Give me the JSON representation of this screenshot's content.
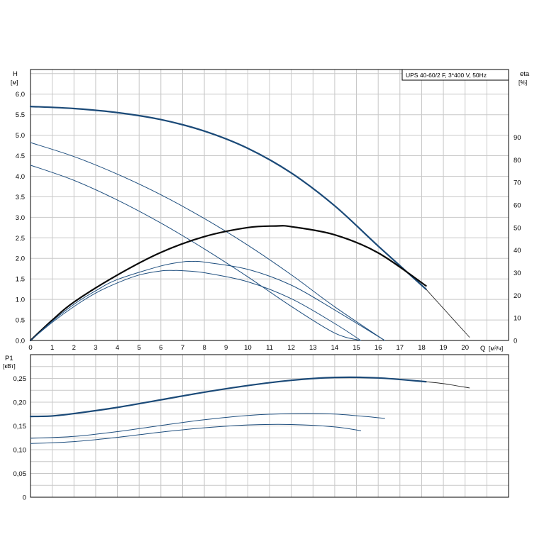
{
  "chart_data": [
    {
      "type": "line",
      "title": "UPS 40-60/2 F, 3*400 V, 50Hz",
      "xlabel": "Q",
      "xunit": "[м³/ч]",
      "ylabel": "H",
      "yunit": "[м]",
      "y2label": "eta",
      "y2unit": "[%]",
      "xlim": [
        0,
        22
      ],
      "ylim": [
        0,
        6.6
      ],
      "y2lim": [
        0,
        120
      ],
      "grid": true,
      "x_ticks": [
        "0",
        "1",
        "2",
        "3",
        "4",
        "5",
        "6",
        "7",
        "8",
        "9",
        "10",
        "11",
        "12",
        "13",
        "14",
        "15",
        "16",
        "17",
        "18",
        "19",
        "20"
      ],
      "y_ticks": [
        "0.0",
        "0.5",
        "1.0",
        "1.5",
        "2.0",
        "2.5",
        "3.0",
        "3.5",
        "4.0",
        "4.5",
        "5.0",
        "5.5",
        "6.0"
      ],
      "y2_ticks": [
        "0",
        "10",
        "20",
        "30",
        "40",
        "50",
        "60",
        "70",
        "80",
        "90"
      ],
      "series": [
        {
          "axis": "H",
          "style": "bold",
          "x": [
            0,
            2,
            4,
            6,
            8,
            10,
            12,
            14,
            16,
            18.2
          ],
          "y": [
            5.7,
            5.65,
            5.55,
            5.38,
            5.1,
            4.68,
            4.08,
            3.28,
            2.3,
            1.25
          ]
        },
        {
          "axis": "H",
          "style": "bold-ext",
          "x": [
            18.2,
            19,
            20.2
          ],
          "y": [
            1.25,
            0.78,
            0.08
          ]
        },
        {
          "axis": "H",
          "style": "thin",
          "x": [
            0,
            2,
            4,
            6,
            8,
            10,
            12,
            14,
            16.3
          ],
          "y": [
            4.82,
            4.48,
            4.05,
            3.55,
            2.97,
            2.32,
            1.6,
            0.82,
            0.0
          ]
        },
        {
          "axis": "H",
          "style": "thin",
          "x": [
            0,
            2,
            4,
            6,
            8,
            10,
            12,
            14,
            15.2
          ],
          "y": [
            4.27,
            3.9,
            3.42,
            2.86,
            2.23,
            1.55,
            0.83,
            0.18,
            0.0
          ]
        },
        {
          "axis": "eta",
          "style": "bold",
          "x": [
            0,
            1,
            2,
            4,
            6,
            8,
            10,
            11.3,
            12,
            14,
            16,
            18.2
          ],
          "y": [
            0,
            9,
            17,
            29,
            39,
            46,
            50,
            50.7,
            50.4,
            46.8,
            38.8,
            24.2
          ]
        },
        {
          "axis": "eta",
          "style": "thin",
          "x": [
            0,
            1,
            2,
            3,
            4,
            6,
            7,
            7.4,
            8,
            10,
            12,
            14,
            16.3
          ],
          "y": [
            0,
            8.5,
            16,
            22,
            27,
            33,
            34.8,
            35,
            34.7,
            31.5,
            24.5,
            13.5,
            0
          ]
        },
        {
          "axis": "eta",
          "style": "thin",
          "x": [
            0,
            1,
            2,
            3,
            4,
            5,
            6,
            6.6,
            7,
            8,
            10,
            12,
            14,
            15.2
          ],
          "y": [
            0,
            8,
            15,
            21,
            25.5,
            29,
            30.8,
            31,
            30.9,
            30,
            26,
            18.5,
            7.5,
            0
          ]
        }
      ]
    },
    {
      "type": "line",
      "ylabel": "P1",
      "yunit": "[кВт]",
      "xlim": [
        0,
        22
      ],
      "ylim": [
        0,
        0.3
      ],
      "grid": true,
      "y_ticks": [
        "0",
        "0,05",
        "0,10",
        "0,15",
        "0,20",
        "0,25"
      ],
      "series": [
        {
          "style": "bold",
          "x": [
            0,
            1,
            2,
            4,
            6,
            8,
            10,
            12,
            14,
            16,
            18.2
          ],
          "y": [
            0.17,
            0.171,
            0.176,
            0.189,
            0.205,
            0.221,
            0.235,
            0.246,
            0.252,
            0.251,
            0.243
          ]
        },
        {
          "style": "bold-ext",
          "x": [
            18.2,
            19,
            20.2
          ],
          "y": [
            0.243,
            0.239,
            0.23
          ]
        },
        {
          "style": "thin",
          "x": [
            0,
            2,
            4,
            6,
            8,
            10,
            12,
            14,
            16.3
          ],
          "y": [
            0.124,
            0.128,
            0.138,
            0.151,
            0.163,
            0.172,
            0.176,
            0.175,
            0.166
          ]
        },
        {
          "style": "thin",
          "x": [
            0,
            2,
            4,
            6,
            8,
            10,
            12,
            14,
            15.2
          ],
          "y": [
            0.113,
            0.117,
            0.126,
            0.137,
            0.146,
            0.152,
            0.153,
            0.148,
            0.14
          ]
        }
      ]
    }
  ]
}
